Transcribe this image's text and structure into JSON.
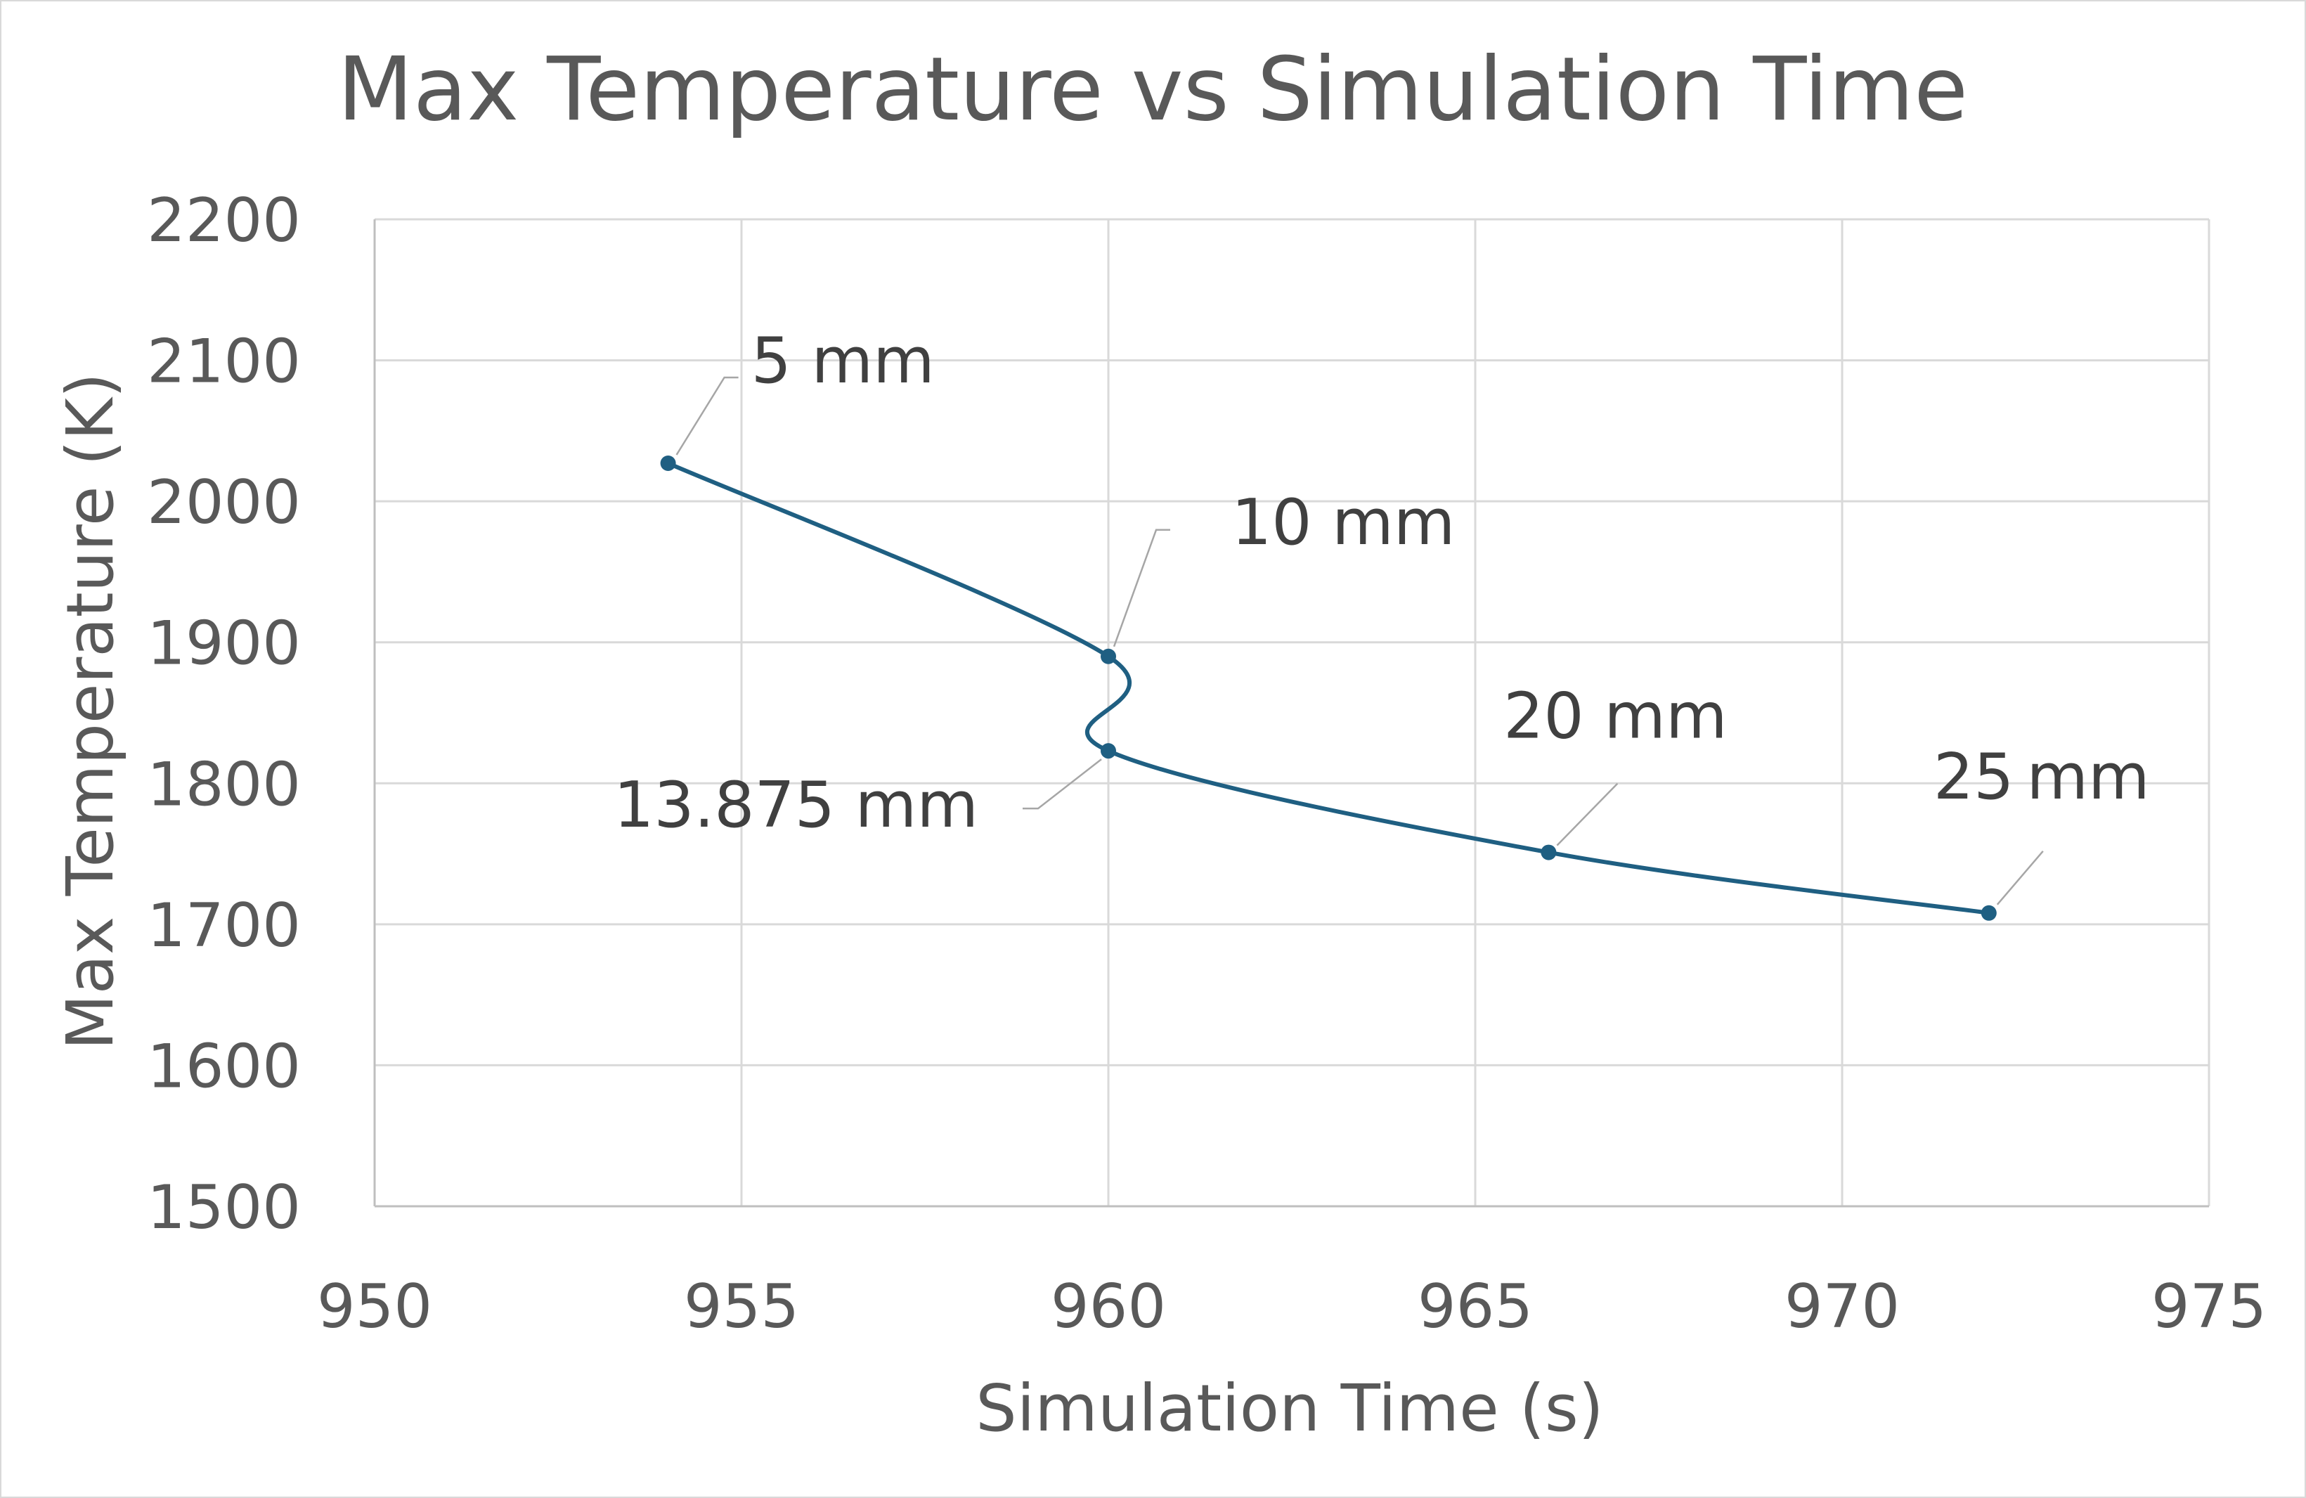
{
  "chart_data": {
    "type": "scatter",
    "title": "Max Temperature vs Simulation Time",
    "xlabel": "Simulation Time (s)",
    "ylabel": "Max Temperature (K)",
    "xlim": [
      950,
      975
    ],
    "ylim": [
      1500,
      2200
    ],
    "xticks": [
      950,
      955,
      960,
      965,
      970,
      975
    ],
    "yticks": [
      1500,
      1600,
      1700,
      1800,
      1900,
      2000,
      2100,
      2200
    ],
    "grid": true,
    "smooth_line": true,
    "series": [
      {
        "points": [
          {
            "x": 954,
            "y": 2027,
            "label": "5 mm"
          },
          {
            "x": 960,
            "y": 1890,
            "label": "10 mm"
          },
          {
            "x": 960,
            "y": 1823,
            "label": "13.875 mm"
          },
          {
            "x": 966,
            "y": 1751,
            "label": "20 mm"
          },
          {
            "x": 972,
            "y": 1708,
            "label": "25 mm"
          }
        ]
      }
    ],
    "colors": {
      "series": "#1f5f82",
      "grid": "#d9d9d9",
      "text": "#595959"
    }
  }
}
